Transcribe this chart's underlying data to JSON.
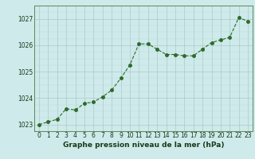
{
  "x": [
    0,
    1,
    2,
    3,
    4,
    5,
    6,
    7,
    8,
    9,
    10,
    11,
    12,
    13,
    14,
    15,
    16,
    17,
    18,
    19,
    20,
    21,
    22,
    23
  ],
  "y": [
    1023.0,
    1023.1,
    1023.2,
    1023.6,
    1023.55,
    1023.8,
    1023.85,
    1024.05,
    1024.3,
    1024.75,
    1025.25,
    1026.05,
    1026.05,
    1025.85,
    1025.65,
    1025.65,
    1025.6,
    1025.6,
    1025.85,
    1026.1,
    1026.2,
    1026.3,
    1027.05,
    1026.9
  ],
  "line_color": "#2d6a2d",
  "marker_color": "#2d6a2d",
  "bg_color": "#ceeaea",
  "grid_color_major": "#adc8c8",
  "grid_color_minor": "#bcd8d8",
  "xlabel": "Graphe pression niveau de la mer (hPa)",
  "ylim": [
    1022.75,
    1027.5
  ],
  "yticks": [
    1023,
    1024,
    1025,
    1026,
    1027
  ],
  "xticks": [
    0,
    1,
    2,
    3,
    4,
    5,
    6,
    7,
    8,
    9,
    10,
    11,
    12,
    13,
    14,
    15,
    16,
    17,
    18,
    19,
    20,
    21,
    22,
    23
  ],
  "xlabel_fontsize": 6.5,
  "tick_fontsize": 5.5,
  "line_width": 0.8,
  "marker_size": 2.5
}
